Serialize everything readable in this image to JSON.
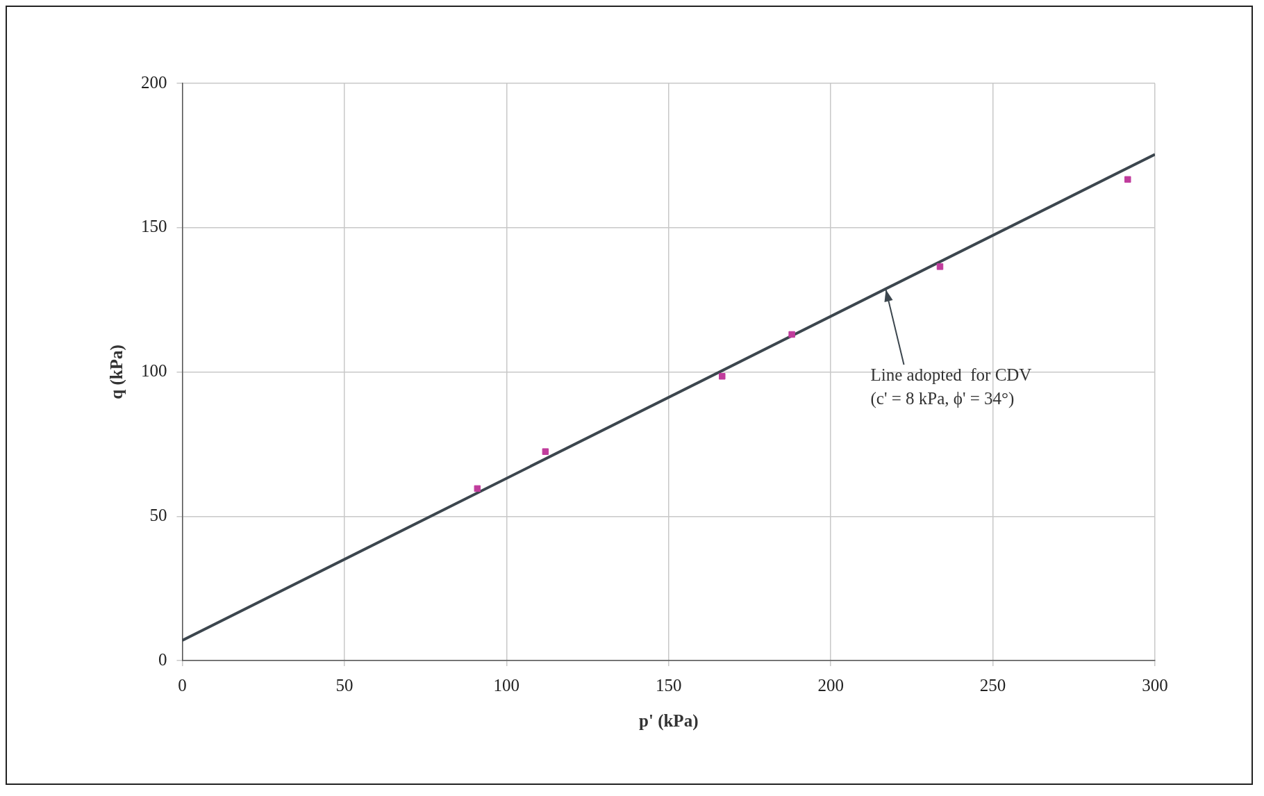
{
  "chart_data": {
    "type": "scatter",
    "xlabel": "p' (kPa)",
    "ylabel": "q (kPa)",
    "xlim": [
      0,
      300
    ],
    "xticks": [
      0,
      50,
      100,
      150,
      200,
      250,
      300
    ],
    "ylim": [
      0,
      200
    ],
    "yticks": [
      0,
      50,
      100,
      150,
      200
    ],
    "grid": true,
    "legend": false,
    "marker": "square",
    "series": [
      {
        "type": "scatter",
        "color": "#c03c9c",
        "x": [
          91,
          112,
          166.5,
          188,
          233.7,
          291.6
        ],
        "values": [
          59.6,
          72.4,
          98.5,
          113,
          136.5,
          166.7
        ]
      },
      {
        "type": "line",
        "color": "#3c464e",
        "marker": "none",
        "line_style": "solid",
        "x": [
          0,
          300
        ],
        "values": [
          7,
          175.4
        ]
      }
    ],
    "annotations": [
      {
        "text": "Line adopted  for CDV\n(c' = 8 kPa, ϕ' = 34°)",
        "x": 217,
        "y": 128.5
      }
    ]
  }
}
